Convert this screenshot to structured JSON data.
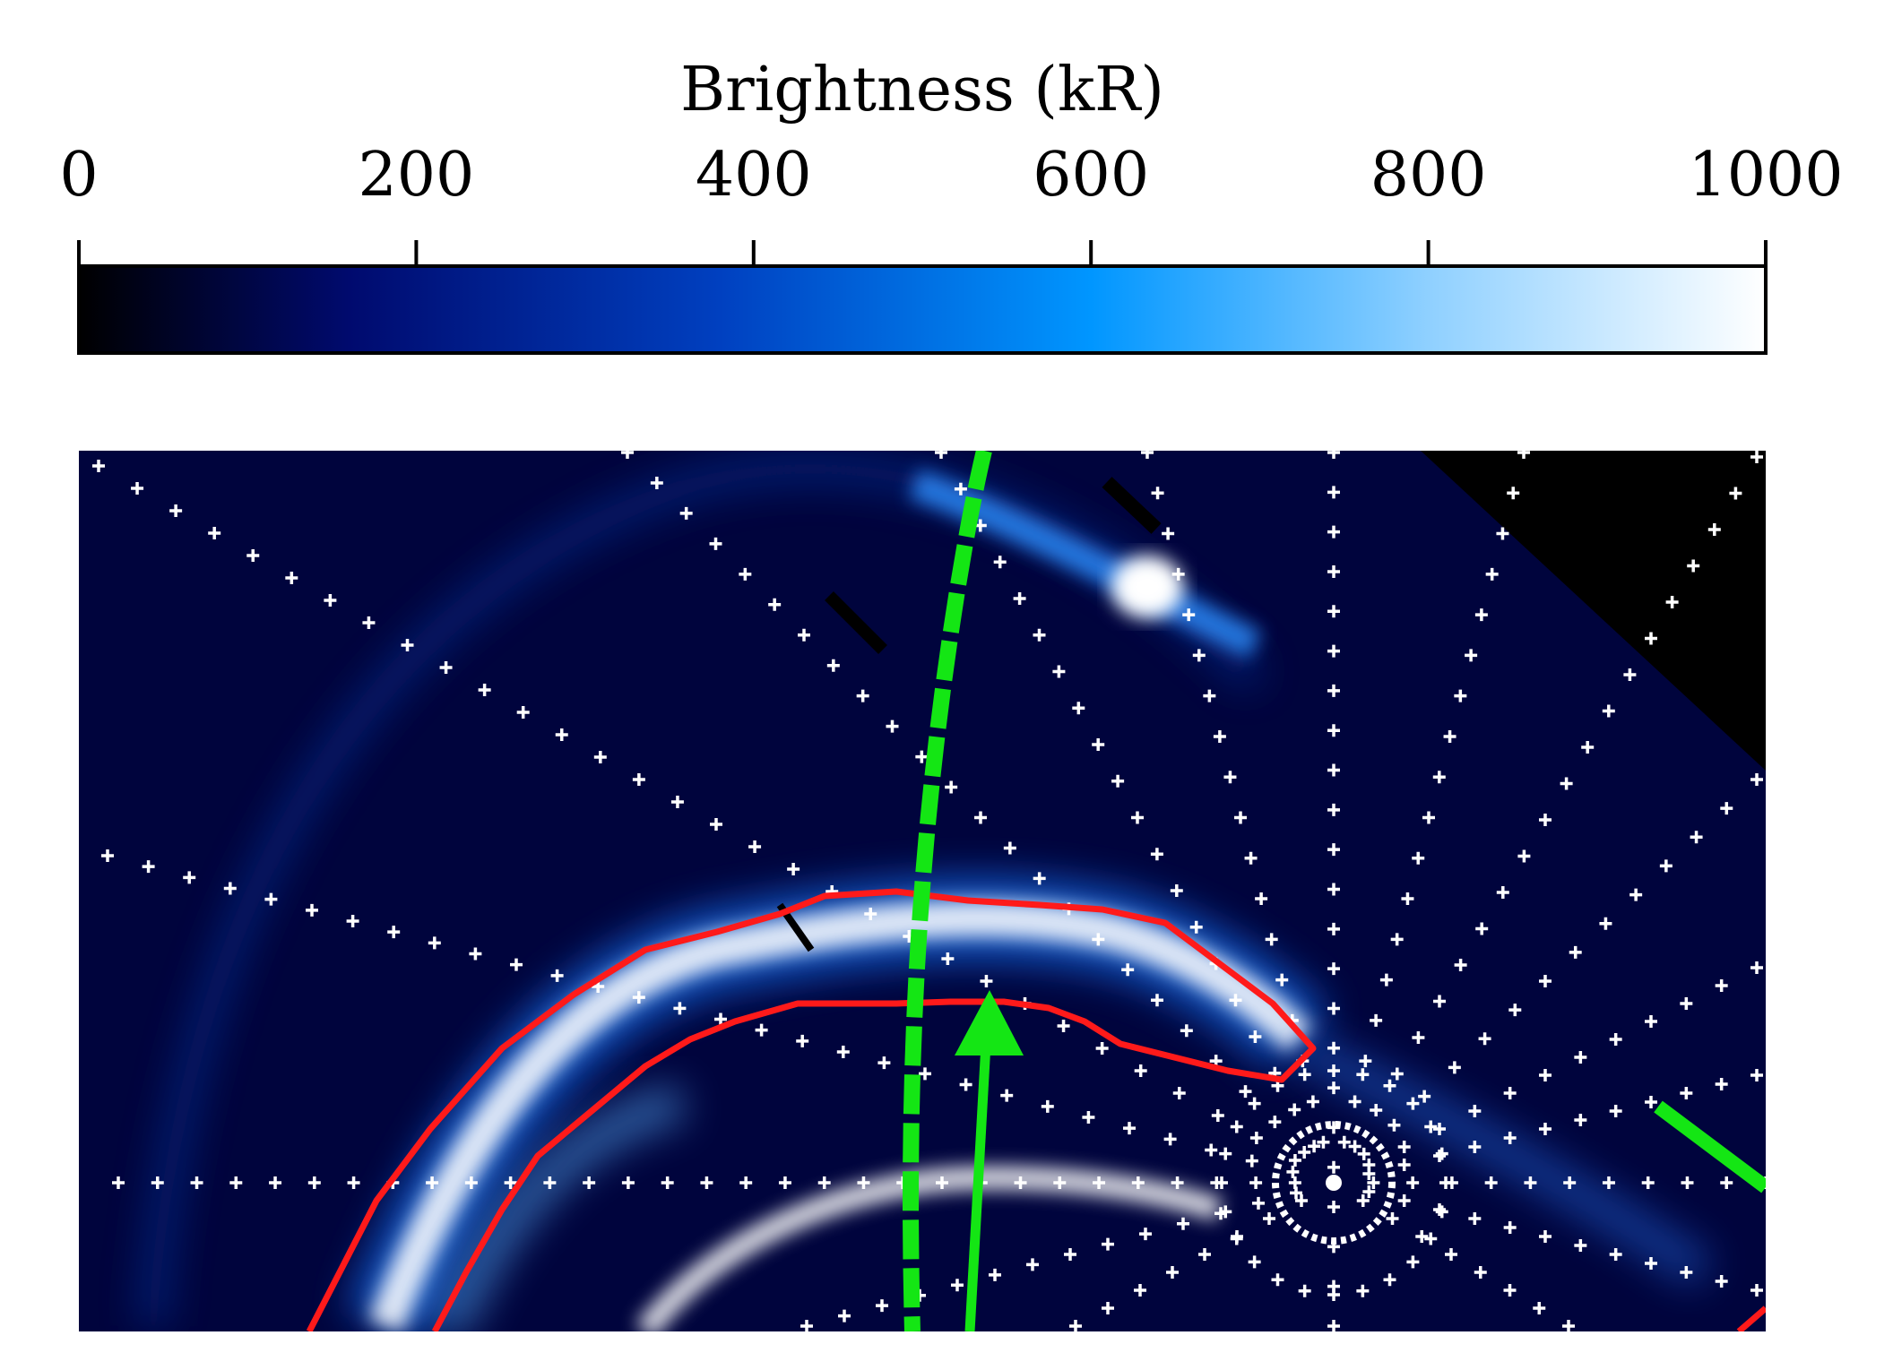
{
  "colorbar": {
    "label": "Brightness (kR)",
    "range": [
      0,
      1000
    ],
    "ticks": [
      "0",
      "200",
      "400",
      "600",
      "800",
      "1000"
    ],
    "colormap": [
      "#000000",
      "#000a6e",
      "#0040c0",
      "#0096ff",
      "#8fd0ff",
      "#ffffff"
    ]
  },
  "image": {
    "background_color": "#00043d",
    "aurora_color": "#ffffff",
    "grid_marker_color": "#ffffff",
    "contour_color": "#ff1a1a",
    "track_color": "#14e614",
    "arrow_color": "#14e614",
    "no_data_color": "#000000"
  }
}
